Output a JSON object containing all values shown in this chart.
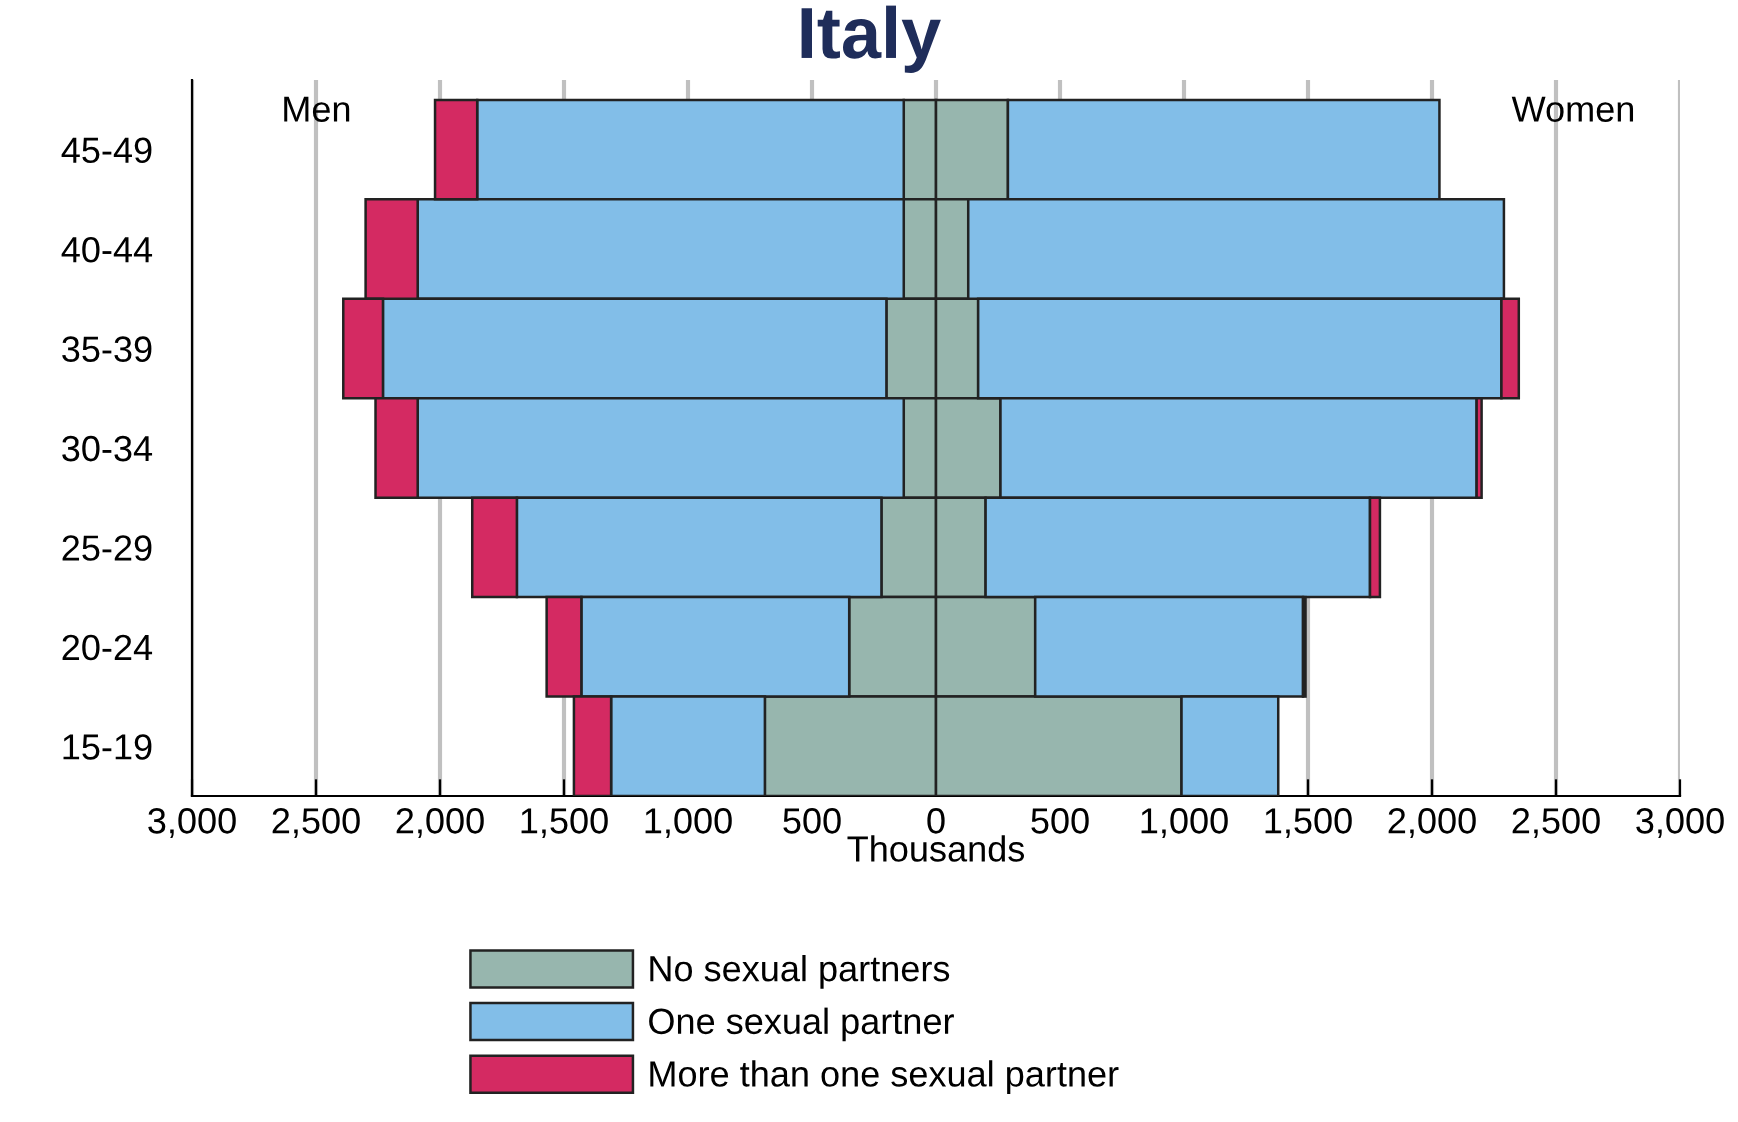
{
  "chart_data": {
    "type": "bar",
    "orientation": "horizontal",
    "stacked": true,
    "title": "Italy",
    "xlabel": "Thousands",
    "categories": [
      "45-49",
      "40-44",
      "35-39",
      "30-34",
      "25-29",
      "20-24",
      "15-19"
    ],
    "series": [
      {
        "name": "No sexual partners",
        "color": "#97b6ae",
        "values": [
          -130,
          -130,
          -200,
          -130,
          -220,
          -350,
          -690
        ]
      },
      {
        "name": "One sexual partner",
        "color": "#82bee8",
        "values": [
          -1720,
          -1960,
          -2030,
          -1960,
          -1470,
          -1080,
          -620
        ]
      },
      {
        "name": "More than one sexual partner",
        "color": "#d42a62",
        "values": [
          -170,
          -210,
          -160,
          -170,
          -180,
          -140,
          -150
        ]
      },
      {
        "color": "#97b6ae",
        "values": [
          290,
          130,
          170,
          260,
          200,
          400,
          990
        ]
      },
      {
        "color": "#82bee8",
        "values": [
          1740,
          2160,
          2110,
          1920,
          1550,
          1080,
          390
        ]
      },
      {
        "color": "#d42a62",
        "values": [
          0,
          0,
          70,
          20,
          40,
          10,
          0
        ]
      }
    ],
    "xlim": [
      -3000,
      3000
    ],
    "xticks": [
      {
        "value": -3000,
        "label": "3,000"
      },
      {
        "value": -2500,
        "label": "2,500"
      },
      {
        "value": -2000,
        "label": "2,000"
      },
      {
        "value": -1500,
        "label": "1,500"
      },
      {
        "value": -1000,
        "label": "1,000"
      },
      {
        "value": -500,
        "label": "500"
      },
      0,
      {
        "value": 500,
        "label": "500"
      },
      {
        "value": 1000,
        "label": "1,000"
      },
      {
        "value": 1500,
        "label": "1,500"
      },
      {
        "value": 2000,
        "label": "2,000"
      },
      {
        "value": 2500,
        "label": "2,500"
      },
      {
        "value": 3000,
        "label": "3,000"
      }
    ],
    "annotations": [
      "Men",
      "Women"
    ],
    "grid": "x",
    "legend": "bottom"
  }
}
